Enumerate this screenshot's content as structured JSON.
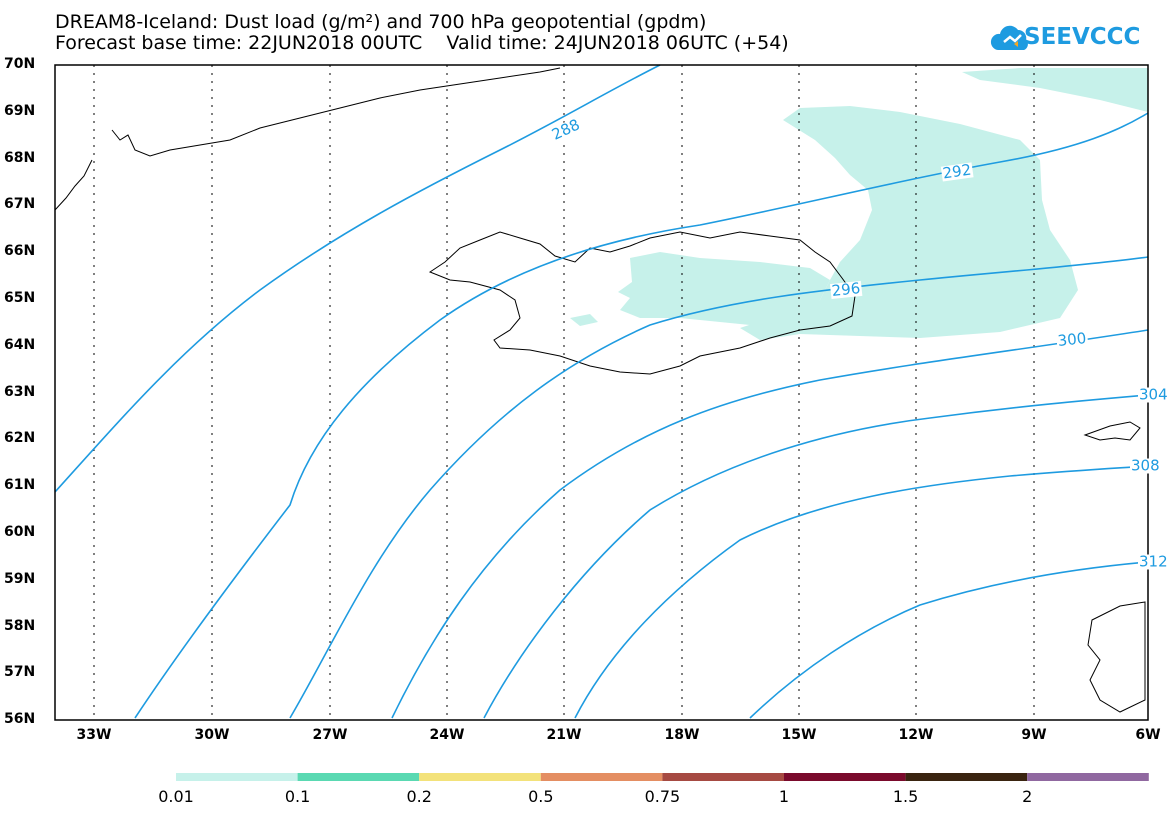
{
  "title_line1": "DREAM8-Iceland: Dust load (g/m²) and 700 hPa geopotential (gpdm)",
  "title_line2": "Forecast base time: 22JUN2018 00UTC    Valid time: 24JUN2018 06UTC (+54)",
  "logo_text": "SEEVCCC",
  "lat_labels": [
    "70N",
    "69N",
    "68N",
    "67N",
    "66N",
    "65N",
    "64N",
    "63N",
    "62N",
    "61N",
    "60N",
    "59N",
    "58N",
    "57N",
    "56N"
  ],
  "lon_labels": [
    "33W",
    "30W",
    "27W",
    "24W",
    "21W",
    "18W",
    "15W",
    "12W",
    "9W",
    "6W"
  ],
  "contour_labels": [
    "288",
    "292",
    "296",
    "300",
    "304",
    "308",
    "312"
  ],
  "colorbar": {
    "labels": [
      "0.01",
      "0.1",
      "0.2",
      "0.5",
      "0.75",
      "1",
      "1.5",
      "2"
    ],
    "colors": [
      "#c6f1ea",
      "#5ad9b2",
      "#f3e27a",
      "#e48e62",
      "#a64a42",
      "#7a0a2c",
      "#3a2410",
      "#9068a0"
    ]
  },
  "colors": {
    "contour": "#1e9be0",
    "dust_lightest": "#c6f1ea",
    "logo": "#1e9be0"
  }
}
